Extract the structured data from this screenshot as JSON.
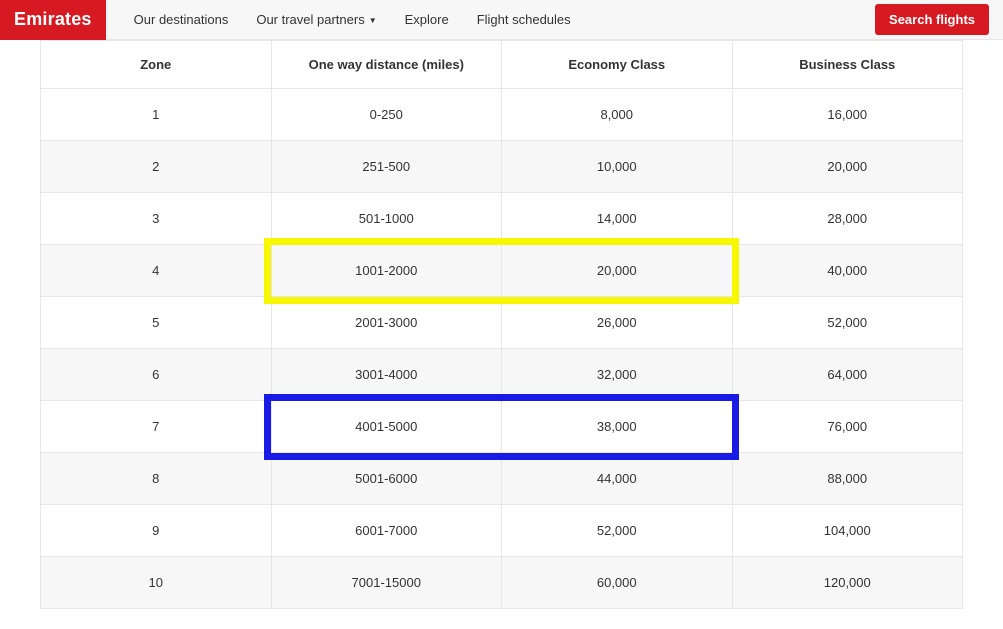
{
  "brand": "Emirates",
  "nav": {
    "items": [
      {
        "label": "Our destinations",
        "hasDropdown": false
      },
      {
        "label": "Our travel partners",
        "hasDropdown": true
      },
      {
        "label": "Explore",
        "hasDropdown": false
      },
      {
        "label": "Flight schedules",
        "hasDropdown": false
      }
    ]
  },
  "searchButton": "Search flights",
  "table": {
    "columns": [
      "Zone",
      "One way distance (miles)",
      "Economy Class",
      "Business Class"
    ],
    "rows": [
      [
        "1",
        "0-250",
        "8,000",
        "16,000"
      ],
      [
        "2",
        "251-500",
        "10,000",
        "20,000"
      ],
      [
        "3",
        "501-1000",
        "14,000",
        "28,000"
      ],
      [
        "4",
        "1001-2000",
        "20,000",
        "40,000"
      ],
      [
        "5",
        "2001-3000",
        "26,000",
        "52,000"
      ],
      [
        "6",
        "3001-4000",
        "32,000",
        "64,000"
      ],
      [
        "7",
        "4001-5000",
        "38,000",
        "76,000"
      ],
      [
        "8",
        "5001-6000",
        "44,000",
        "88,000"
      ],
      [
        "9",
        "6001-7000",
        "52,000",
        "104,000"
      ],
      [
        "10",
        "7001-15000",
        "60,000",
        "120,000"
      ]
    ]
  },
  "highlights": [
    {
      "rowIndex": 3,
      "colStart": 1,
      "colEnd": 2,
      "color": "#f7f700",
      "borderWidth": 7
    },
    {
      "rowIndex": 6,
      "colStart": 1,
      "colEnd": 2,
      "color": "#1a1ae6",
      "borderWidth": 7
    }
  ],
  "colors": {
    "brandRed": "#d71921",
    "headerBg": "#f7f7f7",
    "border": "#e6e6e6",
    "textPrimary": "#333333",
    "rowAlt": "#f7f7f7"
  }
}
